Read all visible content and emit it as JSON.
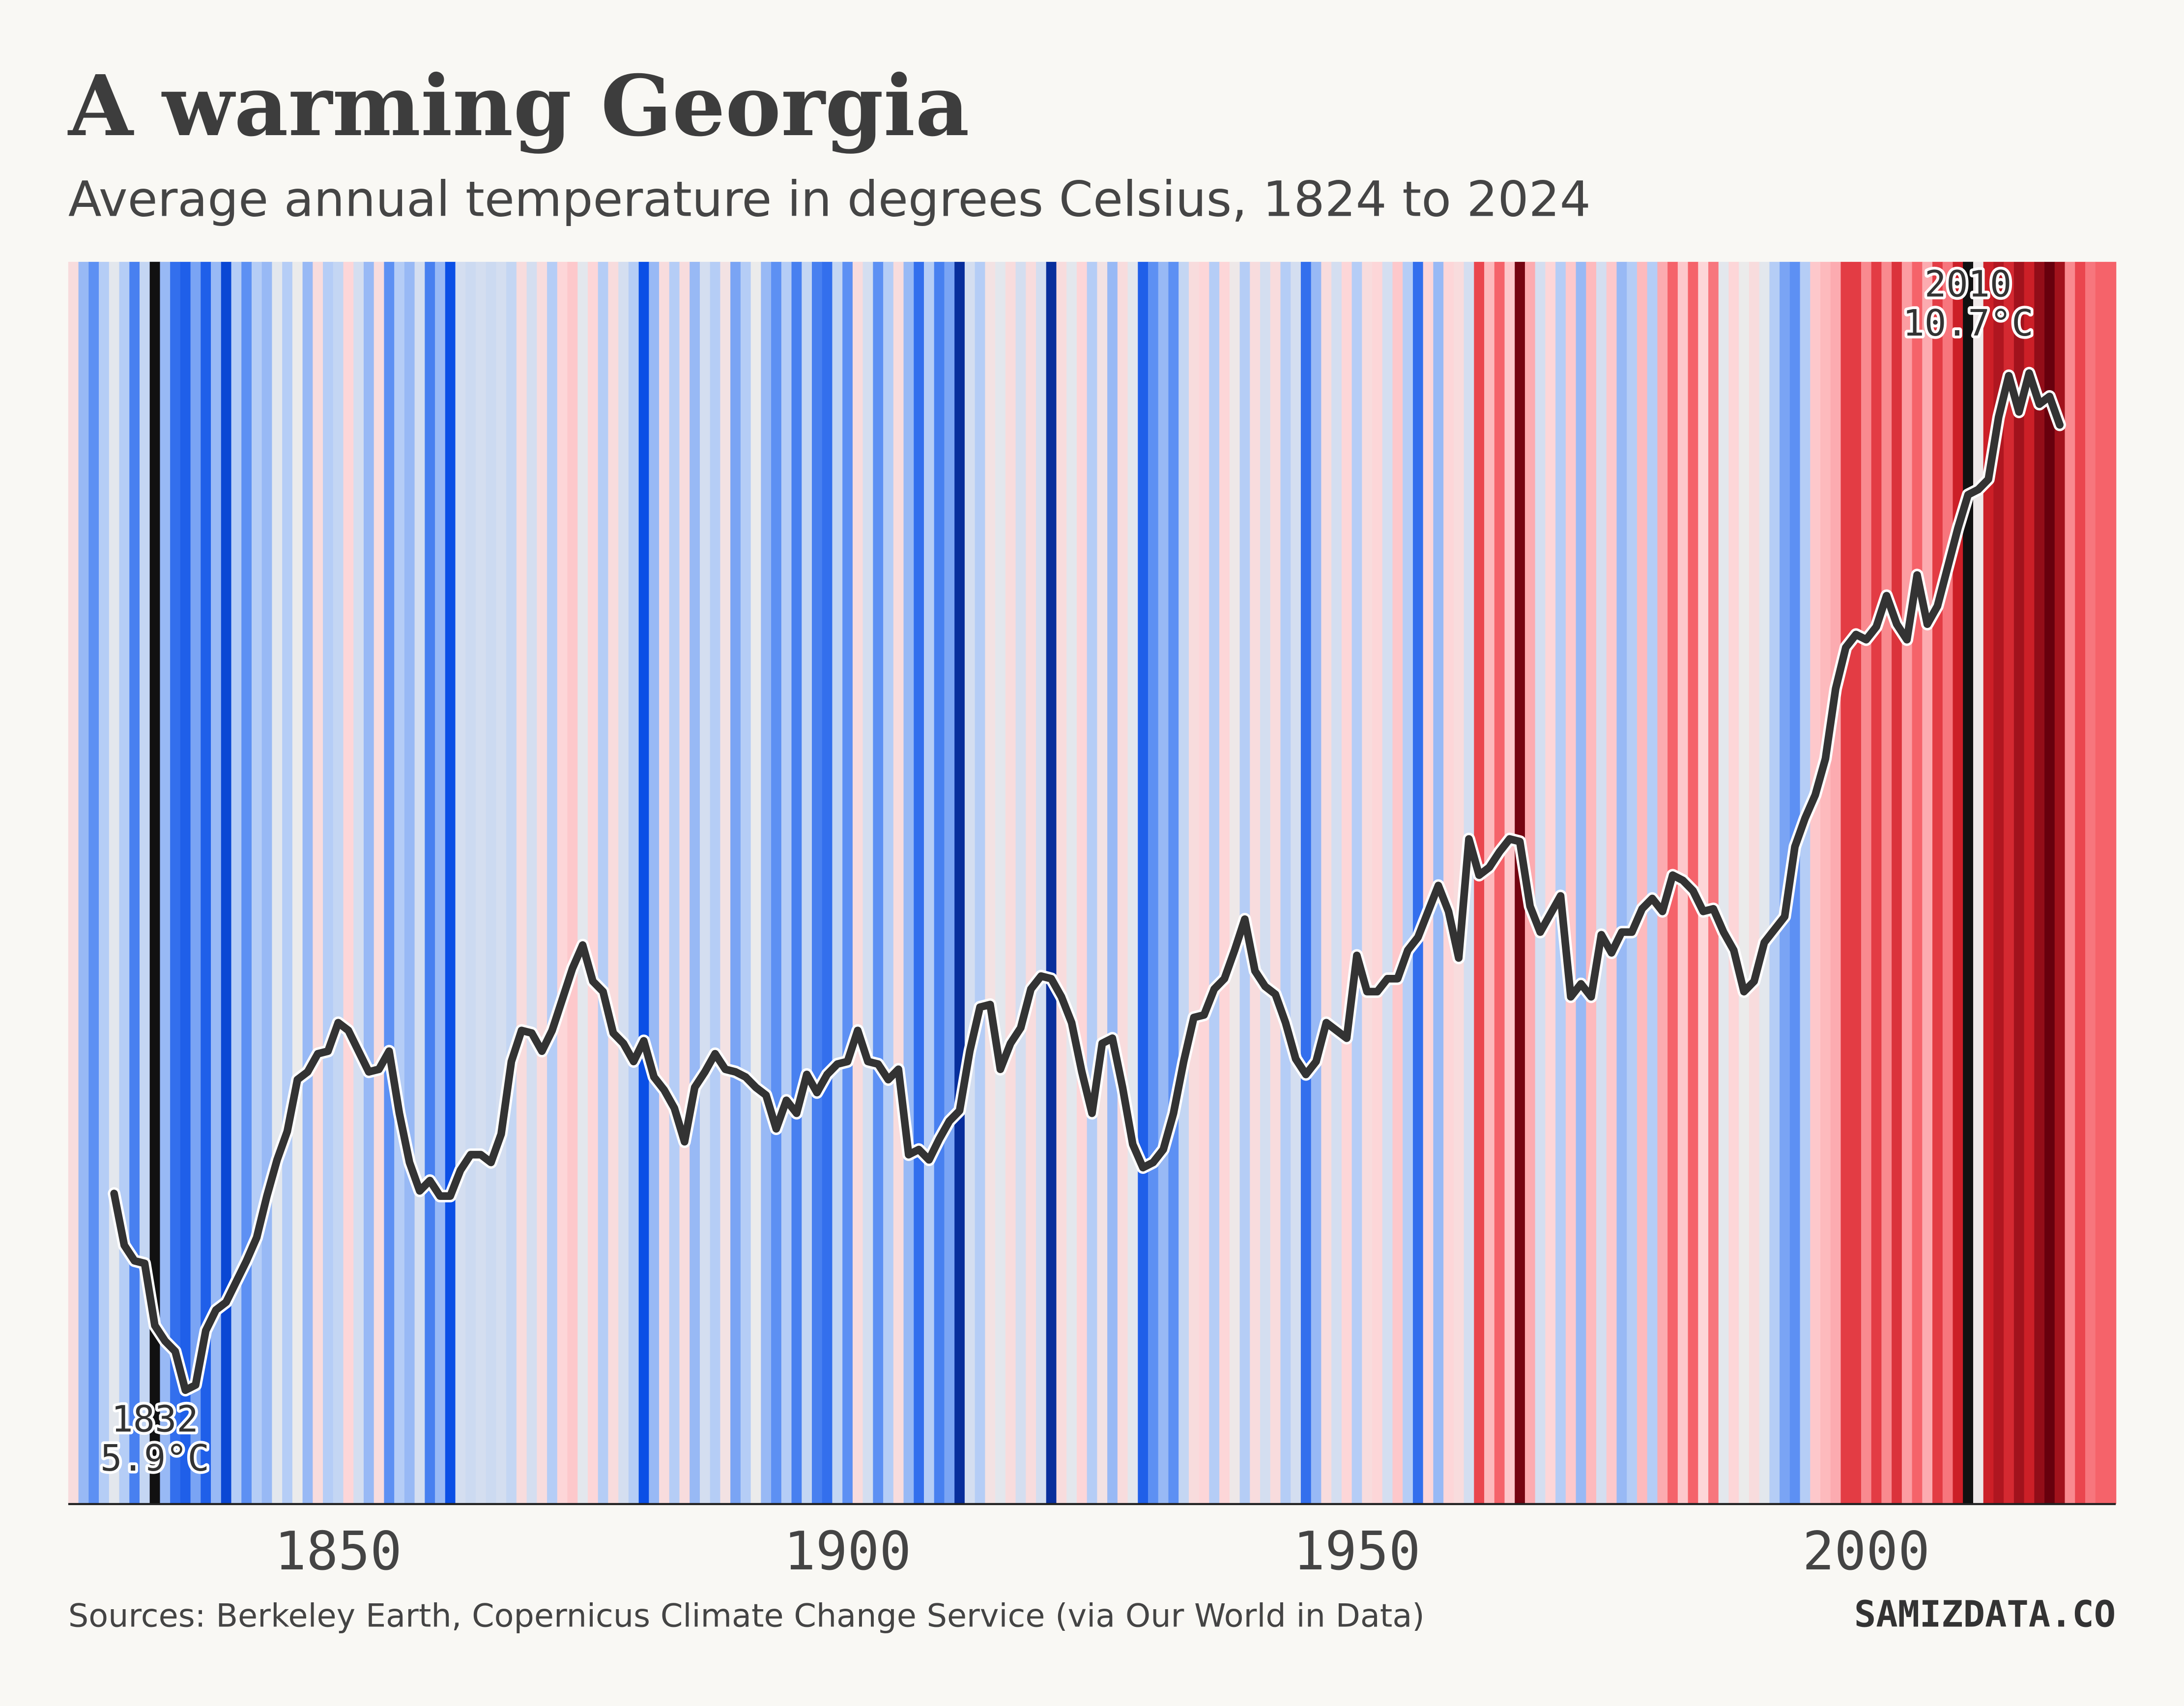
{
  "chart_data": {
    "type": "stripes",
    "title": "A warming Georgia",
    "subtitle": "Average annual temperature in degrees Celsius, 1824 to 2024",
    "source": "Sources: Berkeley Earth, Copernicus Climate Change Service (via Our World in Data)",
    "brand": "SAMIZDATA.CO",
    "xlim": [
      1823.5,
      2024.5
    ],
    "xticks": [
      1850,
      1900,
      1950,
      2000
    ],
    "ylim": [
      5.9,
      10.7
    ],
    "color_scale": [
      {
        "value": 6.4,
        "color": "#08268a"
      },
      {
        "value": 6.9,
        "color": "#0a4fe6"
      },
      {
        "value": 7.3,
        "color": "#5d90f3"
      },
      {
        "value": 7.6,
        "color": "#b5cdf6"
      },
      {
        "value": 7.95,
        "color": "#ebebeb"
      },
      {
        "value": 8.3,
        "color": "#fdd6d8"
      },
      {
        "value": 8.7,
        "color": "#fc9da2"
      },
      {
        "value": 9.1,
        "color": "#f25058"
      },
      {
        "value": 9.6,
        "color": "#cc1f27"
      },
      {
        "value": 10.3,
        "color": "#67000d"
      }
    ],
    "stripes": {
      "x": [
        1824,
        1825,
        1826,
        1827,
        1828,
        1829,
        1830,
        1831,
        1832,
        1833,
        1834,
        1835,
        1836,
        1837,
        1838,
        1839,
        1840,
        1841,
        1842,
        1843,
        1844,
        1845,
        1846,
        1847,
        1848,
        1849,
        1850,
        1851,
        1852,
        1853,
        1854,
        1855,
        1856,
        1857,
        1858,
        1859,
        1860,
        1861,
        1862,
        1863,
        1864,
        1865,
        1866,
        1867,
        1868,
        1869,
        1870,
        1871,
        1872,
        1873,
        1874,
        1875,
        1876,
        1877,
        1878,
        1879,
        1880,
        1881,
        1882,
        1883,
        1884,
        1885,
        1886,
        1887,
        1888,
        1889,
        1890,
        1891,
        1892,
        1893,
        1894,
        1895,
        1896,
        1897,
        1898,
        1899,
        1900,
        1901,
        1902,
        1903,
        1904,
        1905,
        1906,
        1907,
        1908,
        1909,
        1910,
        1911,
        1912,
        1913,
        1914,
        1915,
        1916,
        1917,
        1918,
        1919,
        1920,
        1921,
        1922,
        1923,
        1924,
        1925,
        1926,
        1927,
        1928,
        1929,
        1930,
        1931,
        1932,
        1933,
        1934,
        1935,
        1936,
        1937,
        1938,
        1939,
        1940,
        1941,
        1942,
        1943,
        1944,
        1945,
        1946,
        1947,
        1948,
        1949,
        1950,
        1951,
        1952,
        1953,
        1954,
        1955,
        1956,
        1957,
        1958,
        1959,
        1960,
        1961,
        1962,
        1963,
        1964,
        1965,
        1966,
        1967,
        1968,
        1969,
        1970,
        1971,
        1972,
        1973,
        1974,
        1975,
        1976,
        1977,
        1978,
        1979,
        1980,
        1981,
        1982,
        1983,
        1984,
        1985,
        1986,
        1987,
        1988,
        1989,
        1990,
        1991,
        1992,
        1993,
        1994,
        1995,
        1996,
        1997,
        1998,
        1999,
        2000,
        2001,
        2002,
        2003,
        2004,
        2005,
        2006,
        2007,
        2008,
        2009,
        2010,
        2011,
        2012,
        2013,
        2014,
        2015,
        2016,
        2017,
        2018,
        2019,
        2020,
        2021,
        2022,
        2023,
        2024
      ],
      "values": [
        8.2,
        7.5,
        7.3,
        7.6,
        7.9,
        7.6,
        7.2,
        7.7,
        5.9,
        7.5,
        7.1,
        7.0,
        7.4,
        7.0,
        7.5,
        6.8,
        7.6,
        7.3,
        7.6,
        7.5,
        7.9,
        7.6,
        7.95,
        7.5,
        8.2,
        7.6,
        7.7,
        8.3,
        7.8,
        7.5,
        8.2,
        7.3,
        7.6,
        7.5,
        7.8,
        7.2,
        7.5,
        6.9,
        7.8,
        7.75,
        7.8,
        7.75,
        7.8,
        7.7,
        8.2,
        7.8,
        8.2,
        7.6,
        8.3,
        8.4,
        7.9,
        8.3,
        7.6,
        8.2,
        7.8,
        7.6,
        6.9,
        7.5,
        8.2,
        7.6,
        8.2,
        7.5,
        7.8,
        7.6,
        8.1,
        7.4,
        7.6,
        7.95,
        7.5,
        7.3,
        7.6,
        7.2,
        7.7,
        7.2,
        7.1,
        7.7,
        7.3,
        8.2,
        7.8,
        7.3,
        7.6,
        8.2,
        7.5,
        7.1,
        7.6,
        7.2,
        7.4,
        6.5,
        7.8,
        7.6,
        8.1,
        7.9,
        8.2,
        7.8,
        8.2,
        7.8,
        6.5,
        8.2,
        7.9,
        8.3,
        7.6,
        8.1,
        7.5,
        8.2,
        7.9,
        7.0,
        7.3,
        7.5,
        7.3,
        7.7,
        8.2,
        8.3,
        7.6,
        8.3,
        8.0,
        7.6,
        8.2,
        7.8,
        8.2,
        7.6,
        7.8,
        7.1,
        7.5,
        8.2,
        7.8,
        8.3,
        7.6,
        8.2,
        8.3,
        7.8,
        8.4,
        7.6,
        7.1,
        8.3,
        7.5,
        8.3,
        8.2,
        7.8,
        9.2,
        8.5,
        9.0,
        8.4,
        10.2,
        8.6,
        7.8,
        8.3,
        7.6,
        8.4,
        7.5,
        8.5,
        7.8,
        8.4,
        7.5,
        7.6,
        8.5,
        7.6,
        8.6,
        9.0,
        8.4,
        9.0,
        8.3,
        8.9,
        7.9,
        8.3,
        7.95,
        8.2,
        7.9,
        7.6,
        7.4,
        7.3,
        7.6,
        8.4,
        8.5,
        8.6,
        9.3,
        9.3,
        8.8,
        9.3,
        8.8,
        9.4,
        8.7,
        9.0,
        8.6,
        9.3,
        8.9,
        9.6,
        10.7,
        8.0,
        9.6,
        9.8,
        9.5,
        9.9,
        9.6,
        10.0,
        10.4,
        9.9,
        8.8,
        9.2,
        8.9,
        9.0,
        9.0
      ]
    },
    "line": {
      "color": "#333333",
      "x": [
        1828,
        1829,
        1830,
        1831,
        1832,
        1833,
        1834,
        1835,
        1836,
        1837,
        1838,
        1839,
        1840,
        1841,
        1842,
        1843,
        1844,
        1845,
        1846,
        1847,
        1848,
        1849,
        1850,
        1851,
        1852,
        1853,
        1854,
        1855,
        1856,
        1857,
        1858,
        1859,
        1860,
        1861,
        1862,
        1863,
        1864,
        1865,
        1866,
        1867,
        1868,
        1869,
        1870,
        1871,
        1872,
        1873,
        1874,
        1875,
        1876,
        1877,
        1878,
        1879,
        1880,
        1881,
        1882,
        1883,
        1884,
        1885,
        1886,
        1887,
        1888,
        1889,
        1890,
        1891,
        1892,
        1893,
        1894,
        1895,
        1896,
        1897,
        1898,
        1899,
        1900,
        1901,
        1902,
        1903,
        1904,
        1905,
        1906,
        1907,
        1908,
        1909,
        1910,
        1911,
        1912,
        1913,
        1914,
        1915,
        1916,
        1917,
        1918,
        1919,
        1920,
        1921,
        1922,
        1923,
        1924,
        1925,
        1926,
        1927,
        1928,
        1929,
        1930,
        1931,
        1932,
        1933,
        1934,
        1935,
        1936,
        1937,
        1938,
        1939,
        1940,
        1941,
        1942,
        1943,
        1944,
        1945,
        1946,
        1947,
        1948,
        1949,
        1950,
        1951,
        1952,
        1953,
        1954,
        1955,
        1956,
        1957,
        1958,
        1959,
        1960,
        1961,
        1962,
        1963,
        1964,
        1965,
        1966,
        1967,
        1968,
        1969,
        1970,
        1971,
        1972,
        1973,
        1974,
        1975,
        1976,
        1977,
        1978,
        1979,
        1980,
        1981,
        1982,
        1983,
        1984,
        1985,
        1986,
        1987,
        1988,
        1989,
        1990,
        1991,
        1992,
        1993,
        1994,
        1995,
        1996,
        1997,
        1998,
        1999,
        2000,
        2001,
        2002,
        2003,
        2004,
        2005,
        2006,
        2007,
        2008,
        2009,
        2010,
        2011,
        2012,
        2013,
        2014,
        2015,
        2016,
        2017,
        2018,
        2019
      ],
      "values": [
        7.1,
        6.9,
        6.84,
        6.83,
        6.59,
        6.53,
        6.49,
        6.34,
        6.36,
        6.57,
        6.65,
        6.68,
        6.76,
        6.84,
        6.93,
        7.09,
        7.23,
        7.34,
        7.54,
        7.57,
        7.64,
        7.65,
        7.76,
        7.73,
        7.65,
        7.57,
        7.58,
        7.65,
        7.41,
        7.22,
        7.11,
        7.15,
        7.09,
        7.09,
        7.19,
        7.25,
        7.25,
        7.22,
        7.33,
        7.61,
        7.73,
        7.72,
        7.65,
        7.73,
        7.85,
        7.97,
        8.06,
        7.92,
        7.88,
        7.72,
        7.68,
        7.61,
        7.69,
        7.55,
        7.5,
        7.43,
        7.3,
        7.51,
        7.57,
        7.64,
        7.58,
        7.57,
        7.55,
        7.51,
        7.48,
        7.35,
        7.46,
        7.41,
        7.56,
        7.49,
        7.56,
        7.6,
        7.61,
        7.73,
        7.61,
        7.6,
        7.54,
        7.58,
        7.25,
        7.27,
        7.23,
        7.31,
        7.38,
        7.42,
        7.65,
        7.82,
        7.83,
        7.58,
        7.68,
        7.74,
        7.89,
        7.94,
        7.93,
        7.86,
        7.76,
        7.57,
        7.41,
        7.68,
        7.7,
        7.51,
        7.29,
        7.2,
        7.22,
        7.27,
        7.41,
        7.61,
        7.78,
        7.79,
        7.89,
        7.93,
        8.04,
        8.16,
        7.96,
        7.9,
        7.87,
        7.76,
        7.62,
        7.56,
        7.61,
        7.76,
        7.73,
        7.7,
        8.02,
        7.88,
        7.88,
        7.93,
        7.93,
        8.04,
        8.09,
        8.19,
        8.29,
        8.19,
        8.01,
        8.47,
        8.33,
        8.36,
        8.42,
        8.47,
        8.46,
        8.21,
        8.11,
        8.18,
        8.25,
        7.86,
        7.91,
        7.86,
        8.1,
        8.03,
        8.11,
        8.11,
        8.2,
        8.24,
        8.19,
        8.33,
        8.31,
        8.27,
        8.19,
        8.2,
        8.11,
        8.04,
        7.88,
        7.92,
        8.07,
        8.12,
        8.17,
        8.44,
        8.55,
        8.64,
        8.78,
        9.05,
        9.21,
        9.26,
        9.24,
        9.29,
        9.41,
        9.3,
        9.24,
        9.49,
        9.3,
        9.37,
        9.52,
        9.67,
        9.8,
        9.82,
        9.86,
        10.1,
        10.26,
        10.12,
        10.27,
        10.15,
        10.18,
        10.07
      ]
    },
    "marker_color": "#111111",
    "annotations": [
      {
        "x": 1832,
        "value": 5.9,
        "label": "5.9°C"
      },
      {
        "x": 2010,
        "value": 10.7,
        "label": "10.7°C"
      }
    ]
  }
}
